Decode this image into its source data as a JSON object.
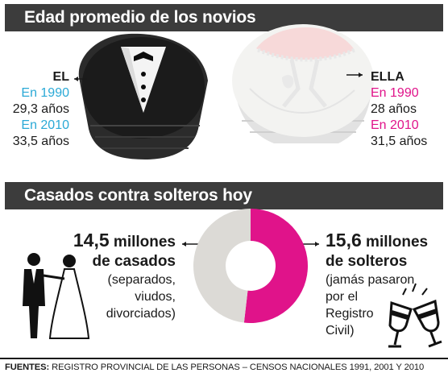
{
  "section1": {
    "title": "Edad promedio de los novios"
  },
  "el": {
    "label": "EL",
    "y1_label": "En 1990",
    "y1_value": "29,3 años",
    "y2_label": "En 2010",
    "y2_value": "33,5 años"
  },
  "ella": {
    "label": "ELLA",
    "y1_label": "En 1990",
    "y1_value": "28 años",
    "y2_label": "En 2010",
    "y2_value": "31,5 años"
  },
  "section2": {
    "title": "Casados contra solteros hoy"
  },
  "casados": {
    "number": "14,5",
    "unit": " millones",
    "line2": "de casados",
    "note1": "(separados,",
    "note2": "viudos,",
    "note3": "divorciados)"
  },
  "solteros": {
    "number": "15,6",
    "unit": " millones",
    "line2": "de solteros",
    "note1": "(jamás pasaron",
    "note2": "por el",
    "note3": "Registro",
    "note4": "Civil)"
  },
  "source": {
    "label": "FUENTES:",
    "text": " REGISTRO PROVINCIAL DE LAS PERSONAS – CENSOS NACIONALES 1991, 2001 Y 2010"
  },
  "colors": {
    "casados": "#dcdad6",
    "solteros": "#e0138a",
    "accent_el": "#2aa9d6",
    "accent_ella": "#e0138a"
  },
  "chart_data": [
    {
      "type": "pie",
      "categories": [
        "casados",
        "solteros"
      ],
      "values": [
        14.5,
        15.6
      ],
      "series": [
        {
          "values": [
            14.5,
            15.6
          ]
        }
      ]
    },
    {
      "type": "table",
      "categories": [
        "En 1990",
        "En 2010"
      ],
      "series": [
        {
          "name": "EL",
          "values": [
            29.3,
            33.5
          ]
        },
        {
          "name": "ELLA",
          "values": [
            28,
            31.5
          ]
        }
      ]
    }
  ]
}
